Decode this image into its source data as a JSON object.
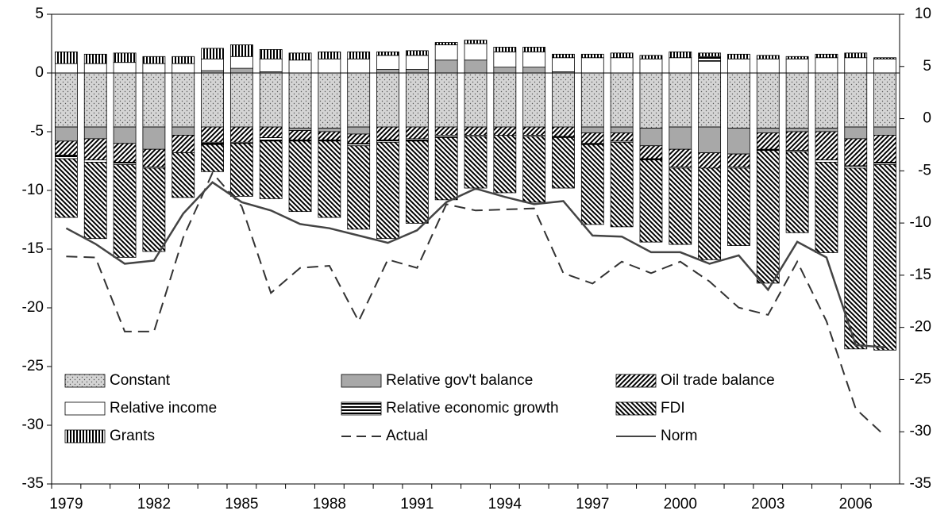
{
  "chart_data": {
    "type": "bar",
    "categories": [
      "1979",
      null,
      null,
      "1982",
      null,
      null,
      "1985",
      null,
      null,
      "1988",
      null,
      null,
      "1991",
      null,
      null,
      "1994",
      null,
      null,
      "1997",
      null,
      null,
      "2000",
      null,
      null,
      "2003",
      null,
      null,
      "2006",
      null
    ],
    "ylim": [
      -35,
      5
    ],
    "yticks": [
      -35,
      -30,
      -25,
      -20,
      -15,
      -10,
      -5,
      0,
      5
    ],
    "y2lim": [
      -35,
      10
    ],
    "y2ticks": [
      -35,
      -30,
      -25,
      -20,
      -15,
      -10,
      -5,
      0,
      5,
      10
    ],
    "stacked": true,
    "legend": "bottom-left",
    "series": [
      {
        "name": "Constant",
        "color": "#d4d4d4",
        "pattern": "dots",
        "values": [
          -4.6,
          -4.6,
          -4.6,
          -4.6,
          -4.6,
          -4.6,
          -4.6,
          -4.6,
          -4.7,
          -4.7,
          -4.6,
          -4.6,
          -4.6,
          -4.6,
          -4.6,
          -4.6,
          -4.6,
          -4.6,
          -4.6,
          -4.6,
          -4.7,
          -4.6,
          -4.6,
          -4.7,
          -4.7,
          -4.7,
          -4.7,
          -4.6,
          -4.6
        ]
      },
      {
        "name": "Relative gov't balance",
        "color": "#a8a8a8",
        "pattern": "solid",
        "values": [
          -1.2,
          -1.0,
          -1.4,
          -1.9,
          -0.7,
          0.2,
          0.4,
          0.1,
          -0.2,
          -0.3,
          -0.6,
          0.3,
          0.3,
          1.1,
          1.1,
          0.5,
          0.5,
          0.1,
          -0.5,
          -0.5,
          -1.5,
          -1.9,
          -2.2,
          -2.2,
          -0.4,
          -0.3,
          -0.3,
          -1.0,
          -0.7
        ]
      },
      {
        "name": "Oil trade balance",
        "color": "#000000",
        "pattern": "diag-up",
        "values": [
          -1.2,
          -1.8,
          -1.6,
          -1.5,
          -1.5,
          -1.3,
          -1.3,
          -0.9,
          -0.8,
          -0.7,
          -0.8,
          -1.1,
          -1.0,
          -0.7,
          -0.7,
          -0.7,
          -0.7,
          -0.8,
          -0.9,
          -0.7,
          -1.1,
          -1.5,
          -1.3,
          -1.1,
          -1.4,
          -1.6,
          -2.4,
          -2.3,
          -2.3
        ]
      },
      {
        "name": "Relative income",
        "color": "#ffffff",
        "pattern": "none",
        "values": [
          0.8,
          0.8,
          0.9,
          0.8,
          0.8,
          1.0,
          1.0,
          1.1,
          1.1,
          1.2,
          1.2,
          1.2,
          1.2,
          1.3,
          1.4,
          1.3,
          1.3,
          1.2,
          1.3,
          1.3,
          1.2,
          1.3,
          1.0,
          1.2,
          1.2,
          1.2,
          1.3,
          1.3,
          1.2
        ]
      },
      {
        "name": "Relative economic growth",
        "color": "#000000",
        "pattern": "hlines",
        "values": [
          -0.3,
          -0.2,
          -0.2,
          -0.1,
          0,
          -0.2,
          -0.1,
          -0.3,
          -0.1,
          -0.1,
          -0.2,
          -0.2,
          -0.2,
          -0.2,
          -0.1,
          0,
          -0.1,
          -0.1,
          -0.1,
          -0.1,
          -0.1,
          -0.1,
          0.4,
          -0.1,
          -0.1,
          -0.1,
          -0.2,
          -0.2,
          -0.2
        ]
      },
      {
        "name": "FDI",
        "color": "#000000",
        "pattern": "diag-down",
        "values": [
          -5.0,
          -6.5,
          -7.9,
          -7.1,
          -3.8,
          -2.3,
          -4.5,
          -4.9,
          -6.0,
          -6.5,
          -7.1,
          -8.2,
          -7.0,
          -5.3,
          -4.4,
          -4.9,
          -5.6,
          -4.3,
          -6.8,
          -7.2,
          -7.0,
          -6.5,
          -7.8,
          -6.6,
          -11.3,
          -6.9,
          -7.7,
          -15.4,
          -15.8
        ]
      },
      {
        "name": "Grants",
        "color": "#000000",
        "pattern": "vlines",
        "values": [
          1.0,
          0.8,
          0.8,
          0.6,
          0.6,
          0.9,
          1.0,
          0.8,
          0.6,
          0.6,
          0.6,
          0.3,
          0.4,
          0.2,
          0.3,
          0.4,
          0.4,
          0.3,
          0.3,
          0.4,
          0.3,
          0.5,
          0.3,
          0.4,
          0.3,
          0.2,
          0.3,
          0.4,
          0.1
        ]
      },
      {
        "name": "Actual",
        "type": "line",
        "axis": "y2",
        "color": "#333333",
        "dash": true,
        "values": [
          -13.2,
          -13.3,
          -20.4,
          -20.4,
          -11.4,
          -5.2,
          -8.4,
          -16.7,
          -14.3,
          -14.1,
          -19.4,
          -13.5,
          -14.3,
          -8.2,
          -8.8,
          -8.7,
          -8.6,
          -14.8,
          -15.8,
          -13.7,
          -14.8,
          -13.7,
          -15.6,
          -18.1,
          -18.8,
          -13.7,
          -19.4,
          -27.8,
          -30.4
        ]
      },
      {
        "name": "Norm",
        "type": "line",
        "axis": "y2",
        "color": "#444444",
        "dash": false,
        "values": [
          -10.5,
          -12.0,
          -13.9,
          -13.6,
          -9.1,
          -6.1,
          -8.0,
          -8.8,
          -10.1,
          -10.5,
          -11.2,
          -11.9,
          -10.7,
          -8.0,
          -6.7,
          -7.5,
          -8.2,
          -7.9,
          -11.2,
          -11.3,
          -12.8,
          -12.8,
          -13.9,
          -13.1,
          -16.4,
          -11.8,
          -13.3,
          -21.7,
          -21.9
        ]
      }
    ]
  }
}
